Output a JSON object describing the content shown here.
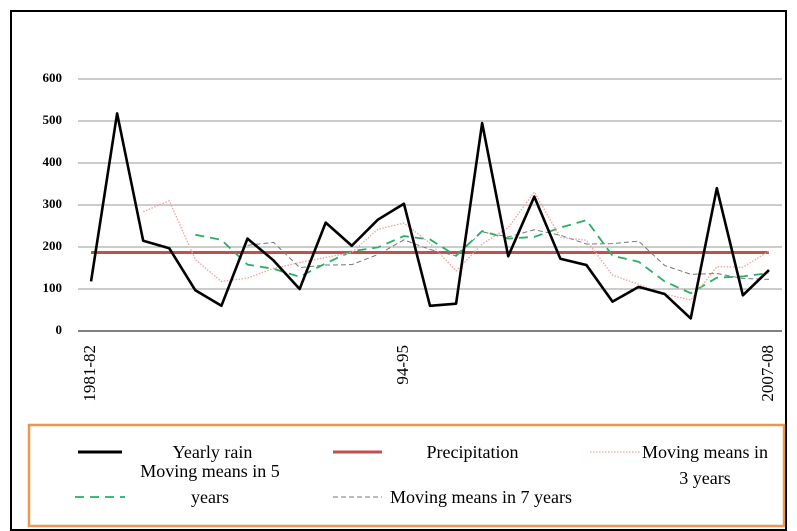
{
  "chart_data": {
    "type": "line",
    "categories": [
      "1981-82",
      null,
      null,
      null,
      null,
      null,
      null,
      null,
      null,
      null,
      null,
      null,
      "94-95",
      null,
      null,
      null,
      null,
      null,
      null,
      null,
      null,
      null,
      null,
      null,
      null,
      null,
      "2007-08"
    ],
    "series": [
      {
        "name": "Yearly rain",
        "color": "#000000",
        "line_style": "solid",
        "values": [
          118,
          518,
          215,
          197,
          97,
          60,
          220,
          168,
          100,
          258,
          203,
          265,
          303,
          60,
          65,
          495,
          178,
          320,
          172,
          157,
          70,
          105,
          88,
          30,
          340,
          85,
          145
        ]
      },
      {
        "name": "Precipitation",
        "color": "#c0504d",
        "line_style": "solid",
        "values": [
          187,
          187,
          187,
          187,
          187,
          187,
          187,
          187,
          187,
          187,
          187,
          187,
          187,
          187,
          187,
          187,
          187,
          187,
          187,
          187,
          187,
          187,
          187,
          187,
          187,
          187,
          187
        ]
      },
      {
        "name": "Moving means in 3 years",
        "color": "#f4a0a0",
        "line_style": "dotted",
        "values": [
          null,
          null,
          284,
          310,
          170,
          118,
          126,
          149,
          163,
          175,
          187,
          242,
          257,
          209,
          143,
          207,
          246,
          331,
          223,
          216,
          133,
          111,
          88,
          74,
          153,
          152,
          190
        ]
      },
      {
        "name": "Moving means in 5 years",
        "color": "#2aae62",
        "line_style": "dashed",
        "values": [
          null,
          null,
          null,
          null,
          229,
          217,
          158,
          148,
          129,
          161,
          190,
          199,
          226,
          218,
          179,
          238,
          220,
          224,
          246,
          264,
          179,
          165,
          118,
          90,
          127,
          130,
          138
        ]
      },
      {
        "name": "Moving means in 7 years",
        "color": "#777777",
        "line_style": "thin-dashed",
        "values": [
          null,
          null,
          null,
          null,
          null,
          null,
          204,
          211,
          151,
          157,
          158,
          182,
          217,
          194,
          179,
          236,
          224,
          241,
          228,
          207,
          208,
          214,
          156,
          135,
          137,
          125,
          123
        ]
      }
    ],
    "ylim": [
      0,
      600
    ],
    "yticks": [
      0,
      100,
      200,
      300,
      400,
      500,
      600
    ],
    "grid": true
  }
}
